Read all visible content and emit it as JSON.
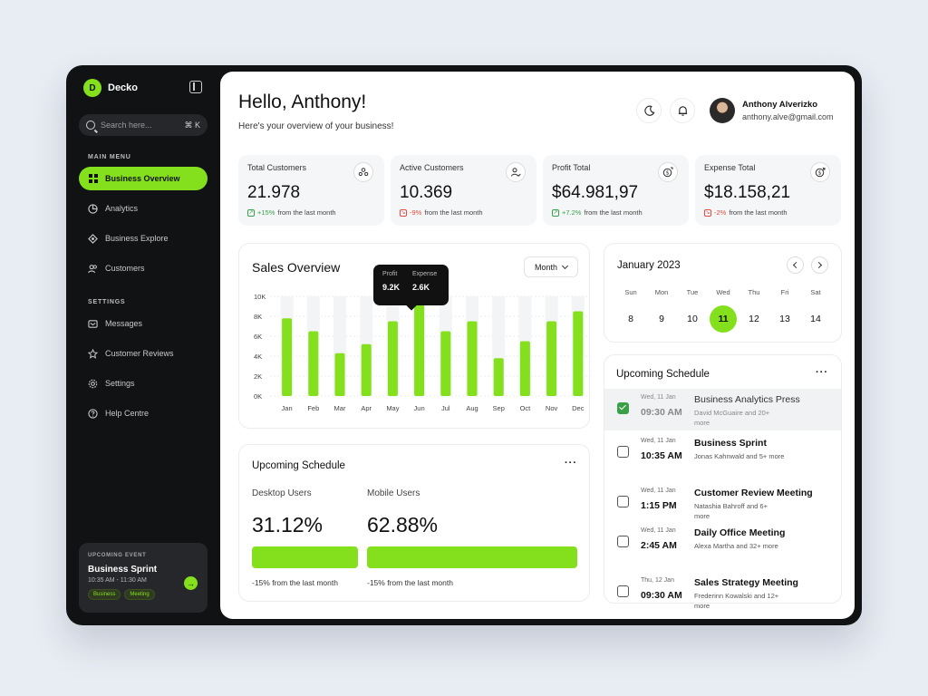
{
  "brand": {
    "logo_letter": "D",
    "name": "Decko"
  },
  "search": {
    "placeholder": "Search here...",
    "shortcut": "⌘ K"
  },
  "sidebar": {
    "main_menu_title": "MAIN MENU",
    "main_items": [
      {
        "label": "Business Overview",
        "icon": "grid-icon",
        "active": true
      },
      {
        "label": "Analytics",
        "icon": "pie-chart-icon"
      },
      {
        "label": "Business Explore",
        "icon": "explore-icon"
      },
      {
        "label": "Customers",
        "icon": "users-icon"
      }
    ],
    "settings_title": "SETTINGS",
    "settings_items": [
      {
        "label": "Messages",
        "icon": "message-icon"
      },
      {
        "label": "Customer Reviews",
        "icon": "star-icon"
      },
      {
        "label": "Settings",
        "icon": "gear-icon"
      },
      {
        "label": "Help Centre",
        "icon": "help-icon"
      }
    ],
    "event": {
      "label": "UPCOMING EVENT",
      "title": "Business Sprint",
      "time": "10:35 AM - 11:30 AM",
      "tags": [
        "Business",
        "Meeting"
      ]
    }
  },
  "header": {
    "greeting": "Hello, Anthony!",
    "subtitle": "Here's your overview of your business!",
    "user_name": "Anthony Alverizko",
    "user_email": "anthony.alve@gmail.com"
  },
  "stats": [
    {
      "label": "Total Customers",
      "value": "21.978",
      "change": "+15%",
      "suffix": "from the last month",
      "direction": "up",
      "icon": "users-group-icon"
    },
    {
      "label": "Active Customers",
      "value": "10.369",
      "change": "-9%",
      "suffix": "from the last month",
      "direction": "down",
      "icon": "user-check-icon"
    },
    {
      "label": "Profit Total",
      "value": "$64.981,97",
      "change": "+7.2%",
      "suffix": "from the last month",
      "direction": "up",
      "icon": "dollar-up-icon"
    },
    {
      "label": "Expense Total",
      "value": "$18.158,21",
      "change": "-2%",
      "suffix": "from the last month",
      "direction": "down",
      "icon": "dollar-down-icon"
    }
  ],
  "sales": {
    "title": "Sales Overview",
    "period": "Month",
    "tooltip": {
      "profit_label": "Profit",
      "profit_value": "9.2K",
      "expense_label": "Expense",
      "expense_value": "2.6K"
    }
  },
  "chart_data": {
    "type": "bar",
    "categories": [
      "Jan",
      "Feb",
      "Mar",
      "Apr",
      "May",
      "Jun",
      "Jul",
      "Aug",
      "Sep",
      "Oct",
      "Nov",
      "Dec"
    ],
    "values": [
      7800,
      6500,
      4300,
      5200,
      7500,
      9200,
      6500,
      7500,
      3800,
      5500,
      7500,
      8500
    ],
    "background_max": 10000,
    "yticks": [
      "10K",
      "8K",
      "6K",
      "4K",
      "2K",
      "0K"
    ],
    "ylim": [
      0,
      10000
    ],
    "highlight_index": 5,
    "bar_color": "#84e01c",
    "track_color": "#f3f4f5",
    "grid": true
  },
  "usage": {
    "title": "Upcoming Schedule",
    "desktop": {
      "label": "Desktop Users",
      "value": "31.12%",
      "change": "-15% from the last month"
    },
    "mobile": {
      "label": "Mobile Users",
      "value": "62.88%",
      "change": "-15% from the last month"
    }
  },
  "calendar": {
    "title": "January 2023",
    "days": [
      {
        "name": "Sun",
        "date": "8"
      },
      {
        "name": "Mon",
        "date": "9"
      },
      {
        "name": "Tue",
        "date": "10"
      },
      {
        "name": "Wed",
        "date": "11",
        "selected": true
      },
      {
        "name": "Thu",
        "date": "12"
      },
      {
        "name": "Fri",
        "date": "13"
      },
      {
        "name": "Sat",
        "date": "14"
      }
    ]
  },
  "schedule": {
    "title": "Upcoming Schedule",
    "items": [
      {
        "date": "Wed, 11 Jan",
        "time": "09:30 AM",
        "title": "Business Analytics Press",
        "sub": "David McGuaire and 20+ more",
        "checked": true
      },
      {
        "date": "Wed, 11 Jan",
        "time": "10:35 AM",
        "title": "Business Sprint",
        "sub": "Jonas Kahnwald and 5+ more",
        "checked": false
      },
      {
        "date": "Wed, 11 Jan",
        "time": "1:15 PM",
        "title": "Customer Review Meeting",
        "sub": "Natashia Bahroff and 6+ more",
        "checked": false
      },
      {
        "date": "Wed, 11 Jan",
        "time": "2:45 AM",
        "title": "Daily Office Meeting",
        "sub": "Alexa Martha and 32+ more",
        "checked": false
      },
      {
        "date": "Thu, 12 Jan",
        "time": "09:30 AM",
        "title": "Sales Strategy Meeting",
        "sub": "Frederinn Kowalski and 12+ more",
        "checked": false
      }
    ]
  },
  "colors": {
    "accent": "#84e01c",
    "dark": "#111214",
    "positive": "#3aa047",
    "negative": "#e24a3b"
  }
}
